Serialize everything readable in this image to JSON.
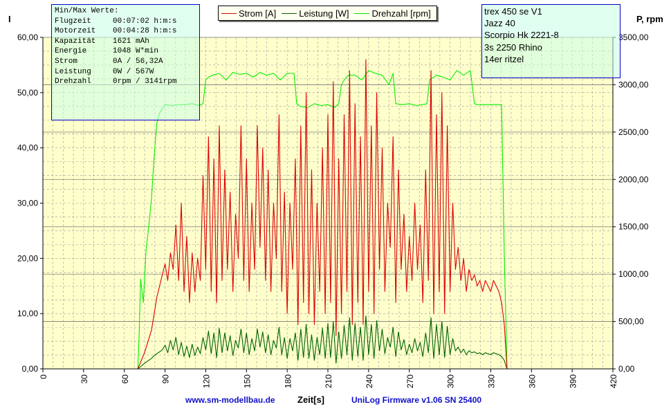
{
  "chart_data": {
    "type": "line",
    "xlabel": "Zeit[s]",
    "ylabel_left": "I",
    "ylabel_right": "P, rpm",
    "xlim": [
      0,
      420
    ],
    "ylim_left": [
      0,
      60
    ],
    "ylim_right": [
      0,
      3500
    ],
    "x_ticks": [
      "0",
      "30",
      "60",
      "90",
      "120",
      "150",
      "180",
      "210",
      "240",
      "270",
      "300",
      "330",
      "360",
      "390",
      "420"
    ],
    "y_left_ticks": [
      "0,00",
      "10,00",
      "20,00",
      "30,00",
      "40,00",
      "50,00",
      "60,00"
    ],
    "y_right_ticks": [
      "0,00",
      "500,00",
      "1000,00",
      "1500,00",
      "2000,00",
      "2500,00",
      "3000,00",
      "3500,00"
    ],
    "grid": true,
    "legend_position": "top",
    "series": [
      {
        "name": "Strom [A]",
        "axis": "left",
        "color": "#dd0000",
        "x": [
          70,
          75,
          80,
          82,
          84,
          86,
          88,
          90,
          92,
          94,
          96,
          98,
          100,
          102,
          104,
          106,
          108,
          110,
          112,
          114,
          116,
          118,
          120,
          122,
          124,
          126,
          128,
          130,
          132,
          134,
          136,
          138,
          140,
          142,
          144,
          146,
          148,
          150,
          152,
          154,
          156,
          158,
          160,
          162,
          164,
          166,
          168,
          170,
          172,
          174,
          176,
          178,
          180,
          182,
          184,
          186,
          188,
          190,
          192,
          194,
          196,
          198,
          200,
          202,
          204,
          206,
          208,
          210,
          212,
          214,
          216,
          218,
          220,
          222,
          224,
          226,
          228,
          230,
          232,
          234,
          236,
          238,
          240,
          242,
          244,
          246,
          248,
          250,
          252,
          254,
          256,
          258,
          260,
          262,
          264,
          266,
          268,
          270,
          272,
          274,
          276,
          278,
          280,
          282,
          284,
          286,
          288,
          290,
          292,
          294,
          296,
          298,
          300,
          302,
          304,
          306,
          308,
          310,
          312,
          314,
          316,
          318,
          320,
          322,
          324,
          326,
          328,
          330,
          332,
          334,
          336,
          338,
          340,
          341,
          342
        ],
        "y": [
          0,
          3,
          7,
          10,
          13,
          15,
          17,
          19,
          16,
          21,
          18,
          26,
          16,
          30,
          14,
          24,
          12,
          21,
          14,
          20,
          16,
          35,
          18,
          42,
          14,
          38,
          12,
          44,
          16,
          36,
          18,
          32,
          14,
          28,
          20,
          44,
          16,
          38,
          14,
          30,
          18,
          44,
          22,
          40,
          16,
          36,
          14,
          30,
          20,
          46,
          14,
          32,
          10,
          30,
          18,
          38,
          8,
          44,
          12,
          50,
          10,
          36,
          8,
          30,
          14,
          40,
          10,
          46,
          12,
          52,
          6,
          38,
          10,
          46,
          14,
          54,
          8,
          48,
          12,
          42,
          8,
          56,
          14,
          44,
          10,
          50,
          18,
          40,
          14,
          30,
          22,
          42,
          12,
          36,
          18,
          28,
          14,
          24,
          16,
          30,
          18,
          26,
          12,
          36,
          16,
          54,
          10,
          46,
          14,
          50,
          10,
          44,
          14,
          30,
          18,
          22,
          16,
          20,
          14,
          18,
          16,
          17,
          15,
          16,
          14,
          16,
          15,
          14,
          16,
          15,
          14,
          12,
          8,
          4,
          0
        ]
      },
      {
        "name": "Leistung [W]",
        "axis": "right",
        "color": "#006400",
        "x": [
          70,
          75,
          80,
          82,
          84,
          86,
          88,
          90,
          92,
          94,
          96,
          98,
          100,
          102,
          104,
          106,
          108,
          110,
          112,
          114,
          116,
          118,
          120,
          122,
          124,
          126,
          128,
          130,
          132,
          134,
          136,
          138,
          140,
          142,
          144,
          146,
          148,
          150,
          152,
          154,
          156,
          158,
          160,
          162,
          164,
          166,
          168,
          170,
          172,
          174,
          176,
          178,
          180,
          182,
          184,
          186,
          188,
          190,
          192,
          194,
          196,
          198,
          200,
          202,
          204,
          206,
          208,
          210,
          212,
          214,
          216,
          218,
          220,
          222,
          224,
          226,
          228,
          230,
          232,
          234,
          236,
          238,
          240,
          242,
          244,
          246,
          248,
          250,
          252,
          254,
          256,
          258,
          260,
          262,
          264,
          266,
          268,
          270,
          272,
          274,
          276,
          278,
          280,
          282,
          284,
          286,
          288,
          290,
          292,
          294,
          296,
          298,
          300,
          302,
          304,
          306,
          308,
          310,
          312,
          314,
          316,
          318,
          320,
          322,
          324,
          326,
          328,
          330,
          332,
          334,
          336,
          338,
          340,
          341,
          342
        ],
        "y": [
          0,
          60,
          110,
          140,
          160,
          180,
          200,
          250,
          170,
          300,
          200,
          330,
          150,
          280,
          130,
          240,
          120,
          260,
          140,
          230,
          160,
          330,
          200,
          400,
          160,
          380,
          120,
          430,
          170,
          380,
          190,
          350,
          140,
          300,
          220,
          420,
          170,
          380,
          150,
          320,
          190,
          420,
          230,
          390,
          170,
          360,
          150,
          300,
          220,
          440,
          150,
          330,
          110,
          320,
          190,
          380,
          90,
          420,
          120,
          470,
          110,
          360,
          90,
          330,
          150,
          430,
          110,
          480,
          120,
          500,
          60,
          390,
          110,
          460,
          150,
          540,
          90,
          480,
          130,
          440,
          90,
          560,
          150,
          470,
          110,
          510,
          190,
          420,
          160,
          330,
          230,
          440,
          130,
          390,
          200,
          310,
          150,
          260,
          170,
          320,
          190,
          280,
          130,
          380,
          170,
          540,
          110,
          470,
          150,
          500,
          120,
          450,
          150,
          320,
          190,
          230,
          170,
          210,
          150,
          190,
          170,
          180,
          160,
          170,
          150,
          170,
          160,
          150,
          170,
          160,
          150,
          130,
          90,
          40,
          0
        ]
      },
      {
        "name": "Drehzahl [rpm]",
        "axis": "right",
        "color": "#00ee00",
        "x": [
          70,
          71,
          72,
          74,
          76,
          78,
          80,
          82,
          84,
          86,
          88,
          90,
          95,
          100,
          105,
          110,
          115,
          118,
          120,
          122,
          125,
          130,
          135,
          140,
          145,
          150,
          155,
          160,
          165,
          170,
          175,
          180,
          185,
          187,
          190,
          195,
          200,
          205,
          210,
          215,
          218,
          220,
          222,
          225,
          230,
          235,
          240,
          245,
          250,
          255,
          258,
          260,
          265,
          270,
          275,
          280,
          283,
          285,
          290,
          295,
          300,
          305,
          310,
          315,
          318,
          320,
          330,
          338,
          340,
          342
        ],
        "y": [
          0,
          400,
          950,
          700,
          1250,
          1500,
          1800,
          2250,
          2600,
          2700,
          2750,
          2790,
          2780,
          2790,
          2790,
          2800,
          2780,
          2800,
          3050,
          3080,
          3100,
          3120,
          3050,
          3130,
          3110,
          3120,
          3080,
          3130,
          3100,
          3120,
          3050,
          3120,
          3120,
          2800,
          2770,
          2760,
          2800,
          2780,
          2790,
          2760,
          2800,
          3000,
          3050,
          3100,
          3100,
          3050,
          3150,
          3120,
          3100,
          3000,
          3120,
          2800,
          2790,
          2800,
          2780,
          2790,
          2800,
          3050,
          3100,
          3080,
          3050,
          3150,
          3100,
          3150,
          2800,
          2790,
          2790,
          2790,
          1200,
          0
        ]
      }
    ]
  },
  "legend": {
    "items": [
      {
        "label": "Strom [A]",
        "color": "#dd0000"
      },
      {
        "label": "Leistung [W]",
        "color": "#006400"
      },
      {
        "label": "Drehzahl [rpm]",
        "color": "#00ee00"
      }
    ]
  },
  "minmax": {
    "title": "Min/Max Werte:",
    "rows": [
      {
        "key": "Flugzeit",
        "value": "00:07:02 h:m:s"
      },
      {
        "key": "Motorzeit",
        "value": "00:04:28 h:m:s"
      },
      {
        "key": "Kapazität",
        "value": "1621 mAh"
      },
      {
        "key": "Energie",
        "value": "1048 W*min"
      },
      {
        "key": "Strom",
        "value": "0A / 56,32A"
      },
      {
        "key": "Leistung",
        "value": "0W / 567W"
      },
      {
        "key": "Drehzahl",
        "value": "0rpm / 3141rpm"
      }
    ]
  },
  "info": {
    "lines": [
      "trex 450 se V1",
      "Jazz 40",
      "Scorpio Hk 2221-8",
      "3s 2250 Rhino",
      "14er ritzel"
    ]
  },
  "footer": {
    "website": "www.sm-modellbau.de",
    "firmware": "UniLog Firmware v1.06 SN 25400"
  },
  "colors": {
    "plot_background": "#ffffcc",
    "grid": "#999999",
    "axis": "#000000"
  }
}
